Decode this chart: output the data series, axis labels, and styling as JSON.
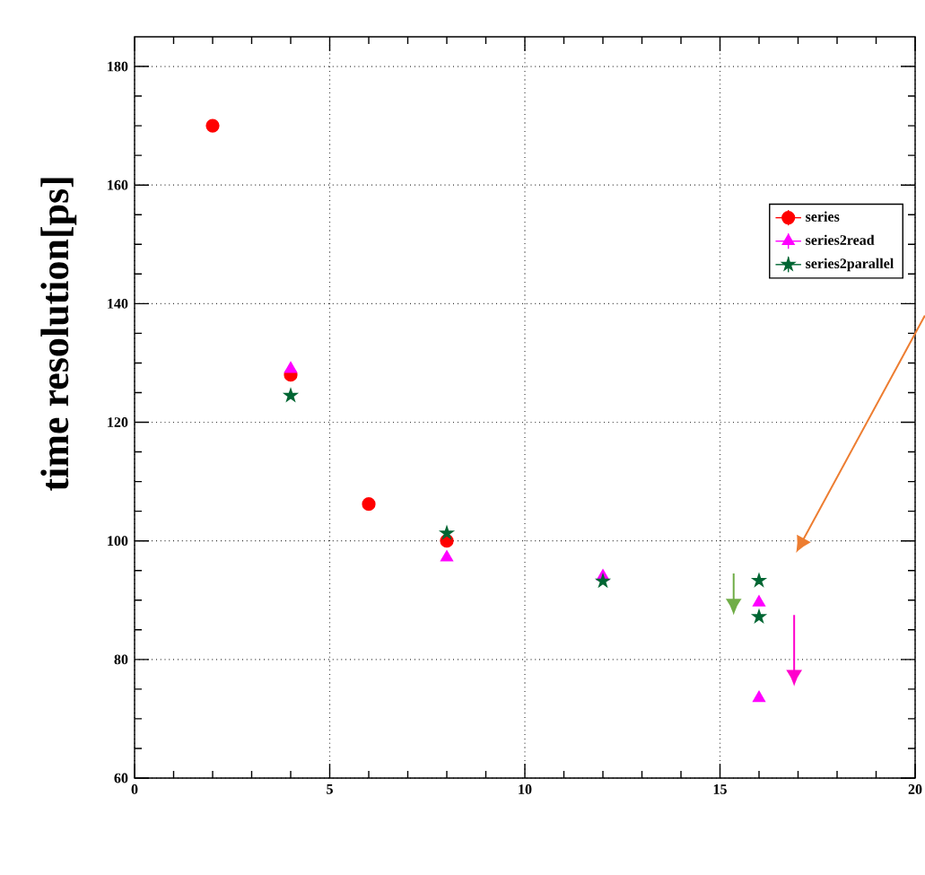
{
  "chart_data": {
    "type": "scatter",
    "ylabel": "time resolution[ps]",
    "series": [
      {
        "name": "series",
        "color": "#ff0000",
        "marker": "circle",
        "x": [
          2,
          4,
          6,
          8
        ],
        "values": [
          170,
          128,
          106.2,
          100
        ]
      },
      {
        "name": "series2read",
        "color": "#ff00ff",
        "marker": "triangle",
        "x": [
          4,
          8,
          12,
          16,
          16
        ],
        "values": [
          129,
          97.2,
          94,
          89.6,
          73.5
        ]
      },
      {
        "name": "series2parallel",
        "color": "#006633",
        "marker": "star",
        "x": [
          4,
          8,
          12,
          16,
          16
        ],
        "values": [
          124.5,
          101.3,
          93.2,
          93.3,
          87.2
        ]
      }
    ],
    "xlim": [
      0,
      20
    ],
    "xticks": [
      0,
      5,
      10,
      15,
      20
    ],
    "ylim": [
      60,
      185
    ],
    "yticks": [
      60,
      80,
      100,
      120,
      140,
      160,
      180
    ],
    "grid": true,
    "legend": "top right"
  }
}
